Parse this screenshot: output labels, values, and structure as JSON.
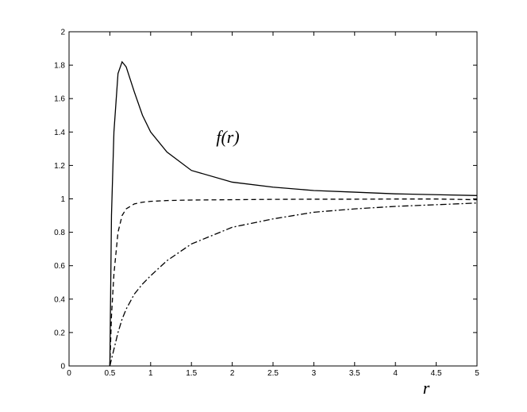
{
  "chart_data": {
    "type": "line",
    "x_label": "r",
    "annotations": [
      {
        "text": "f(r)"
      }
    ],
    "x": [
      0.5,
      0.52,
      0.55,
      0.6,
      0.65,
      0.7,
      0.8,
      0.9,
      1,
      1.2,
      1.5,
      2,
      2.5,
      3,
      3.5,
      4,
      4.5,
      5
    ],
    "series": [
      {
        "color": "#000000",
        "dash": "solid",
        "values": [
          0,
          0.9,
          1.4,
          1.75,
          1.82,
          1.79,
          1.64,
          1.5,
          1.4,
          1.28,
          1.17,
          1.1,
          1.07,
          1.05,
          1.04,
          1.03,
          1.025,
          1.02
        ]
      },
      {
        "color": "#000000",
        "dash": "dashed",
        "values": [
          0,
          0.3,
          0.55,
          0.8,
          0.9,
          0.94,
          0.97,
          0.98,
          0.985,
          0.99,
          0.993,
          0.995,
          0.997,
          0.998,
          0.998,
          0.999,
          0.999,
          0.995
        ]
      },
      {
        "color": "#000000",
        "dash": "dashdot",
        "values": [
          0,
          0.04,
          0.1,
          0.2,
          0.28,
          0.34,
          0.43,
          0.49,
          0.54,
          0.63,
          0.73,
          0.83,
          0.88,
          0.92,
          0.94,
          0.955,
          0.965,
          0.975
        ]
      }
    ],
    "xlim": [
      0,
      5
    ],
    "xticks": [
      0,
      0.5,
      1,
      1.5,
      2,
      2.5,
      3,
      3.5,
      4,
      4.5,
      5
    ],
    "ylim": [
      0,
      2
    ],
    "yticks": [
      0,
      0.2,
      0.4,
      0.6,
      0.8,
      1,
      1.2,
      1.4,
      1.6,
      1.8,
      2
    ],
    "grid": false
  }
}
